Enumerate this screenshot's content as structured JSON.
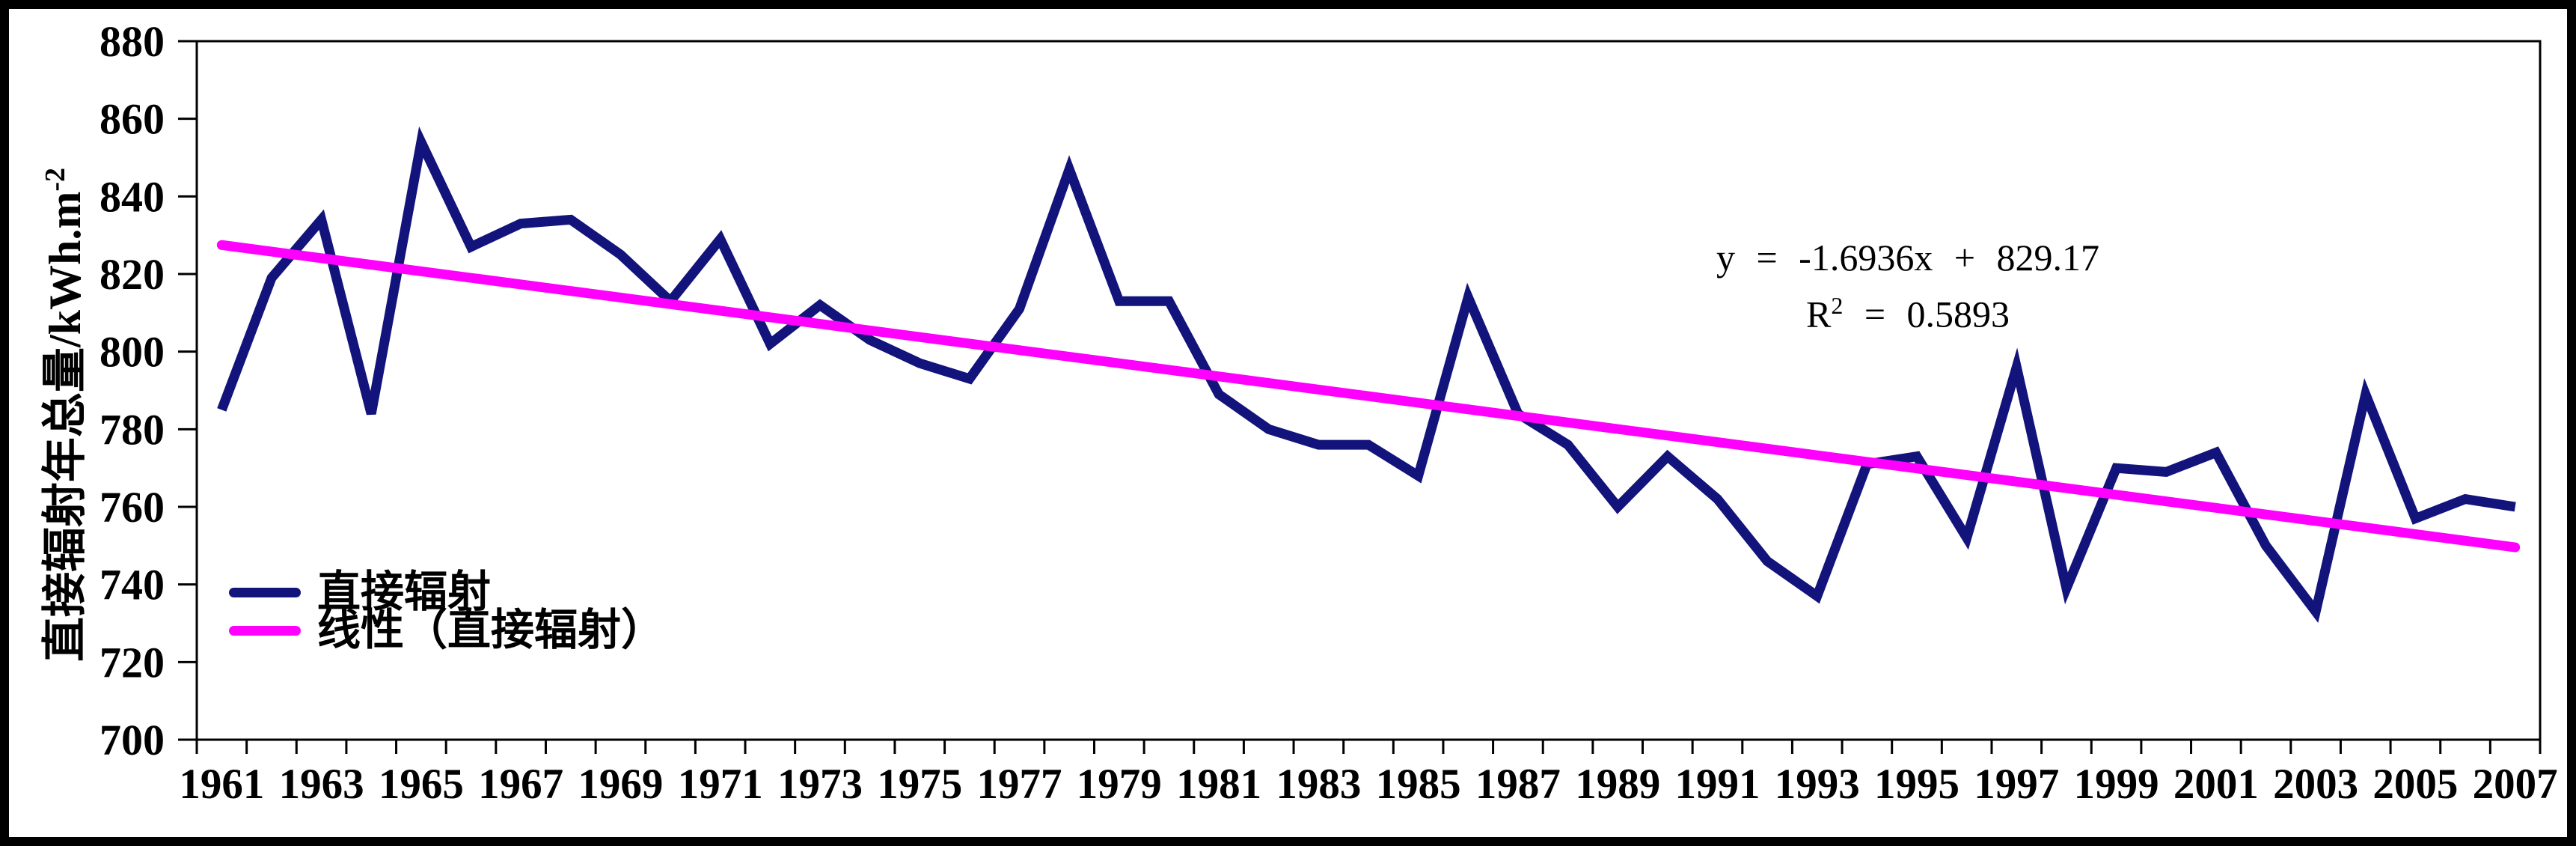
{
  "figure": {
    "background": "#ffffff",
    "frame_color": "#000000"
  },
  "chart_data": {
    "type": "line",
    "title": "",
    "xlabel": "",
    "ylabel_main": "直接辐射年总量/kWh.m",
    "ylabel_sup": "-2",
    "ylim": [
      700,
      880
    ],
    "ytick_step": 20,
    "ytick_labels": [
      "700",
      "720",
      "740",
      "760",
      "780",
      "800",
      "820",
      "840",
      "860",
      "880"
    ],
    "xtick_labels": [
      "1961",
      "1963",
      "1965",
      "1967",
      "1969",
      "1971",
      "1973",
      "1975",
      "1977",
      "1979",
      "1981",
      "1983",
      "1985",
      "1987",
      "1989",
      "1991",
      "1993",
      "1995",
      "1997",
      "1999",
      "2001",
      "2003",
      "2005",
      "2007"
    ],
    "grid": false,
    "legend_position": "lower-left",
    "x": [
      1961,
      1962,
      1963,
      1964,
      1965,
      1966,
      1967,
      1968,
      1969,
      1970,
      1971,
      1972,
      1973,
      1974,
      1975,
      1976,
      1977,
      1978,
      1979,
      1980,
      1981,
      1982,
      1983,
      1984,
      1985,
      1986,
      1987,
      1988,
      1989,
      1990,
      1991,
      1992,
      1993,
      1994,
      1995,
      1996,
      1997,
      1998,
      1999,
      2000,
      2001,
      2002,
      2003,
      2004,
      2005,
      2006,
      2007
    ],
    "series": [
      {
        "name": "直接辐射",
        "color": "#13137C",
        "values": [
          785,
          819,
          834,
          784,
          854,
          827,
          833,
          834,
          825,
          813,
          829,
          802,
          812,
          803,
          797,
          793,
          811,
          847,
          813,
          813,
          789,
          780,
          776,
          776,
          768,
          814,
          784,
          776,
          760,
          773,
          762,
          746,
          737,
          771,
          773,
          752,
          796,
          739,
          770,
          769,
          774,
          750,
          733,
          789,
          757,
          762,
          760
        ]
      },
      {
        "name": "线性（直接辐射）",
        "color": "#FF00FF",
        "type": "linear-trend",
        "slope": -1.6936,
        "intercept": 829.17
      }
    ],
    "annotation": {
      "equation_line": "y = -1.6936x + 829.17",
      "r2_prefix": "R",
      "r2_sup": "2",
      "r2_rest": " = 0.5893"
    }
  }
}
